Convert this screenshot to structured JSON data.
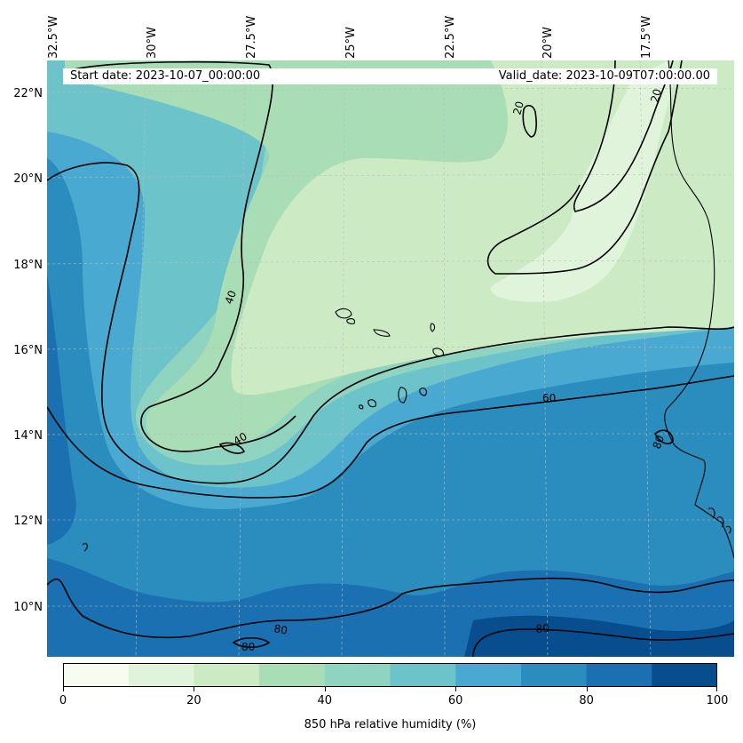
{
  "map": {
    "start_date": "Start date: 2023-10-07_00:00:00",
    "valid_date": "Valid_date: 2023-10-09T07:00:00.00",
    "longitude_labels": [
      "32.5°W",
      "30°W",
      "27.5°W",
      "25°W",
      "22.5°W",
      "20°W",
      "17.5°W"
    ],
    "latitude_labels": [
      "22°N",
      "20°N",
      "18°N",
      "16°N",
      "14°N",
      "12°N",
      "10°N"
    ],
    "contour_labels": [
      {
        "value": "20"
      },
      {
        "value": "20"
      },
      {
        "value": "40"
      },
      {
        "value": "40"
      },
      {
        "value": "60"
      },
      {
        "value": "80"
      },
      {
        "value": "80"
      },
      {
        "value": "80"
      },
      {
        "value": "80"
      }
    ],
    "colors": {
      "b0": "#f7fcf0",
      "b1": "#e0f3db",
      "b2": "#ccebc5",
      "b3": "#a8ddb5",
      "b4": "#8fd3c1",
      "b5": "#6cc3c9",
      "b6": "#4aa9d0",
      "b7": "#2b8cbe",
      "b8": "#1a70b0",
      "b9": "#084d8e"
    }
  },
  "colorbar": {
    "label": "850 hPa relative humidity (%)",
    "min": 0,
    "max": 100,
    "tick_values": [
      0,
      20,
      40,
      60,
      80,
      100
    ],
    "tick_labels": [
      "0",
      "20",
      "40",
      "60",
      "80",
      "100"
    ],
    "colors": [
      "#f7fcf0",
      "#e0f3db",
      "#ccebc5",
      "#a8ddb5",
      "#8fd3c1",
      "#6cc3c9",
      "#4aa9d0",
      "#2b8cbe",
      "#1a70b0",
      "#084d8e"
    ]
  }
}
